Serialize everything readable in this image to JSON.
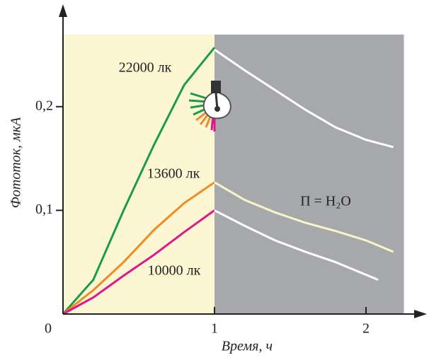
{
  "chart_data": {
    "type": "line",
    "xlabel": "Время, ч",
    "ylabel": "Фототок, мкА",
    "annotation": "П = H₂O",
    "xlim": [
      0,
      2.39
    ],
    "ylim": [
      0,
      0.29
    ],
    "xticks": [
      0,
      1,
      2
    ],
    "yticks": [
      {
        "value": 0.1,
        "label": "0,1"
      },
      {
        "value": 0.2,
        "label": "0,2"
      }
    ],
    "shading": [
      {
        "x": [
          0,
          1
        ],
        "color": "#fdf6d3"
      },
      {
        "x": [
          1,
          2.25
        ],
        "color": "#a7a8ab"
      }
    ],
    "series": [
      {
        "name": "22000 лк",
        "color": "#1a9c4a",
        "x": [
          0,
          0.2,
          0.4,
          0.6,
          0.8,
          1
        ],
        "values": [
          0,
          0.033,
          0.1,
          0.163,
          0.221,
          0.257
        ]
      },
      {
        "name": "13600 лк",
        "color": "#f08a24",
        "x": [
          0,
          0.2,
          0.4,
          0.6,
          0.8,
          1
        ],
        "values": [
          0,
          0.023,
          0.05,
          0.081,
          0.107,
          0.127
        ]
      },
      {
        "name": "10000 лк",
        "color": "#e0178a",
        "x": [
          0,
          0.2,
          0.4,
          0.6,
          0.8,
          1
        ],
        "values": [
          0,
          0.016,
          0.037,
          0.057,
          0.079,
          0.1
        ]
      },
      {
        "color": "#ffffff",
        "x": [
          1,
          1.2,
          1.4,
          1.6,
          1.8,
          2.0,
          2.18
        ],
        "values": [
          0.255,
          0.235,
          0.216,
          0.197,
          0.18,
          0.168,
          0.161
        ]
      },
      {
        "color": "#fbf4c8",
        "x": [
          1,
          1.2,
          1.4,
          1.6,
          1.8,
          2.0,
          2.18
        ],
        "values": [
          0.127,
          0.11,
          0.098,
          0.088,
          0.08,
          0.071,
          0.06
        ]
      },
      {
        "color": "#ffffff",
        "x": [
          1,
          1.2,
          1.4,
          1.6,
          1.8,
          2.08
        ],
        "values": [
          0.1,
          0.085,
          0.071,
          0.06,
          0.05,
          0.033
        ]
      }
    ]
  }
}
